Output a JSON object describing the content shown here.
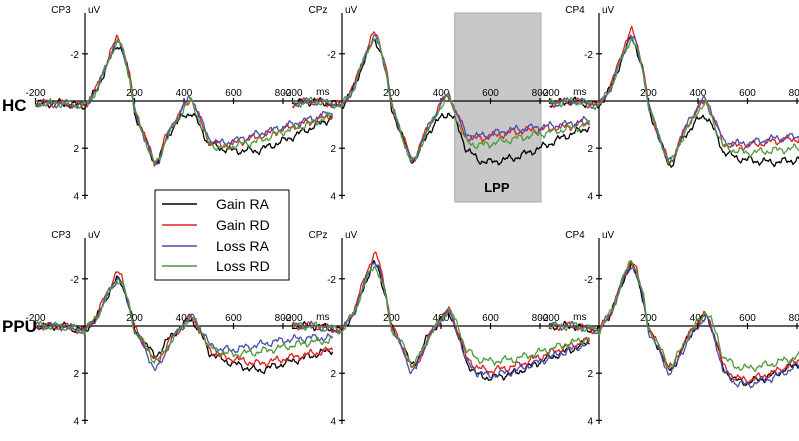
{
  "groups": [
    "HC",
    "PPU"
  ],
  "legend": {
    "entries": [
      {
        "label": "Gain RA",
        "color": "#000000"
      },
      {
        "label": "Gain RD",
        "color": "#e0211d"
      },
      {
        "label": "Loss RA",
        "color": "#4a4fae"
      },
      {
        "label": "Loss RD",
        "color": "#4f9a3f"
      }
    ]
  },
  "lpp": {
    "label": "LPP",
    "x_from": 500,
    "x_to": 800,
    "color": "#c8c8c8"
  },
  "chart_data": [
    {
      "type": "line",
      "group": "HC",
      "channel": "CP3",
      "y_unit": "uV",
      "x_unit": "ms",
      "xlim": [
        -200,
        1000
      ],
      "ylim": [
        -4,
        4
      ],
      "y_inverted": true,
      "x_ticks": [
        -200,
        200,
        400,
        600,
        800
      ],
      "y_ticks": [
        -2,
        2,
        4
      ],
      "x": [
        -200,
        -100,
        0,
        50,
        100,
        130,
        150,
        180,
        200,
        250,
        280,
        300,
        320,
        350,
        400,
        430,
        450,
        480,
        500,
        550,
        600,
        700,
        800,
        900,
        1000
      ],
      "series": [
        {
          "name": "Gain RA",
          "values": [
            0.1,
            0.1,
            0.2,
            -0.5,
            -1.8,
            -2.4,
            -2.2,
            -1.0,
            0.5,
            1.8,
            2.6,
            2.5,
            1.8,
            1.2,
            0.6,
            0.5,
            0.8,
            1.4,
            1.8,
            2.0,
            2.1,
            2.1,
            1.7,
            1.2,
            0.7
          ]
        },
        {
          "name": "Gain RD",
          "values": [
            0.1,
            0.1,
            0.2,
            -0.6,
            -2.0,
            -2.7,
            -2.4,
            -1.1,
            0.4,
            1.7,
            2.6,
            2.4,
            1.7,
            1.1,
            0.2,
            -0.1,
            0.4,
            1.2,
            1.7,
            1.9,
            1.8,
            1.5,
            1.2,
            0.9,
            0.6
          ]
        },
        {
          "name": "Loss RA",
          "values": [
            0.1,
            0.1,
            0.2,
            -0.5,
            -1.9,
            -2.5,
            -2.3,
            -1.0,
            0.4,
            1.8,
            2.7,
            2.5,
            1.8,
            1.1,
            0.2,
            -0.2,
            0.3,
            1.1,
            1.6,
            1.8,
            1.7,
            1.4,
            1.1,
            0.8,
            0.5
          ]
        },
        {
          "name": "Loss RD",
          "values": [
            0.1,
            0.1,
            0.2,
            -0.5,
            -1.9,
            -2.5,
            -2.3,
            -1.0,
            0.4,
            1.8,
            2.7,
            2.5,
            1.8,
            1.2,
            0.3,
            0.0,
            0.5,
            1.3,
            1.8,
            2.0,
            1.9,
            1.7,
            1.3,
            1.0,
            0.6
          ]
        }
      ]
    },
    {
      "type": "line",
      "group": "HC",
      "channel": "CPz",
      "y_unit": "uV",
      "x_unit": "ms",
      "xlim": [
        -200,
        1000
      ],
      "ylim": [
        -4,
        4
      ],
      "y_inverted": true,
      "x_ticks": [
        -200,
        200,
        400,
        600,
        800
      ],
      "y_ticks": [
        -2,
        2,
        4
      ],
      "x": [
        -200,
        -100,
        0,
        50,
        100,
        130,
        150,
        180,
        200,
        250,
        280,
        300,
        320,
        350,
        400,
        430,
        450,
        480,
        500,
        550,
        600,
        700,
        800,
        900,
        1000
      ],
      "series": [
        {
          "name": "Gain RA",
          "values": [
            0.1,
            0.0,
            0.2,
            -0.6,
            -2.0,
            -2.6,
            -2.3,
            -1.2,
            0.3,
            1.7,
            2.5,
            2.4,
            1.9,
            1.3,
            0.7,
            0.5,
            0.7,
            1.4,
            2.0,
            2.5,
            2.6,
            2.4,
            2.0,
            1.5,
            1.1
          ]
        },
        {
          "name": "Gain RD",
          "values": [
            0.1,
            0.0,
            0.2,
            -0.7,
            -2.2,
            -2.9,
            -2.6,
            -1.3,
            0.2,
            1.6,
            2.5,
            2.3,
            1.7,
            1.1,
            0.1,
            -0.3,
            0.2,
            1.0,
            1.5,
            1.6,
            1.5,
            1.3,
            1.2,
            1.1,
            0.9
          ]
        },
        {
          "name": "Loss RA",
          "values": [
            0.1,
            0.0,
            0.2,
            -0.6,
            -2.1,
            -2.7,
            -2.4,
            -1.2,
            0.2,
            1.7,
            2.6,
            2.4,
            1.8,
            1.1,
            0.1,
            -0.3,
            0.2,
            0.9,
            1.4,
            1.5,
            1.4,
            1.2,
            1.1,
            1.0,
            0.8
          ]
        },
        {
          "name": "Loss RD",
          "values": [
            0.1,
            0.0,
            0.2,
            -0.6,
            -2.1,
            -2.7,
            -2.4,
            -1.2,
            0.2,
            1.7,
            2.6,
            2.4,
            1.8,
            1.2,
            0.2,
            -0.2,
            0.3,
            1.2,
            1.7,
            1.9,
            1.8,
            1.6,
            1.4,
            1.2,
            1.0
          ]
        }
      ]
    },
    {
      "type": "line",
      "group": "HC",
      "channel": "CP4",
      "y_unit": "uV",
      "x_unit": "ms",
      "xlim": [
        -200,
        1000
      ],
      "ylim": [
        -4,
        4
      ],
      "y_inverted": true,
      "x_ticks": [
        -200,
        200,
        400,
        600,
        800
      ],
      "y_ticks": [
        -2,
        2,
        4
      ],
      "x": [
        -200,
        -100,
        0,
        50,
        100,
        130,
        150,
        180,
        200,
        250,
        280,
        300,
        320,
        350,
        400,
        430,
        450,
        480,
        500,
        550,
        600,
        700,
        800,
        900,
        1000
      ],
      "series": [
        {
          "name": "Gain RA",
          "values": [
            0.1,
            0.0,
            0.2,
            -0.6,
            -2.0,
            -2.7,
            -2.3,
            -1.2,
            0.3,
            1.8,
            2.7,
            2.6,
            2.0,
            1.4,
            0.8,
            0.6,
            0.9,
            1.6,
            2.1,
            2.4,
            2.5,
            2.6,
            2.5,
            2.3,
            2.0
          ]
        },
        {
          "name": "Gain RD",
          "values": [
            0.1,
            0.0,
            0.2,
            -0.7,
            -2.3,
            -3.0,
            -2.6,
            -1.3,
            0.2,
            1.7,
            2.6,
            2.5,
            1.8,
            1.2,
            0.3,
            0.0,
            0.4,
            1.2,
            1.8,
            1.9,
            1.9,
            1.7,
            1.6,
            1.5,
            1.5
          ]
        },
        {
          "name": "Loss RA",
          "values": [
            0.1,
            0.0,
            0.2,
            -0.6,
            -2.1,
            -2.8,
            -2.4,
            -1.2,
            0.2,
            1.7,
            2.6,
            2.5,
            1.8,
            1.1,
            0.2,
            -0.1,
            0.3,
            1.1,
            1.7,
            1.8,
            1.8,
            1.6,
            1.5,
            1.4,
            1.3
          ]
        },
        {
          "name": "Loss RD",
          "values": [
            0.1,
            0.0,
            0.2,
            -0.6,
            -2.0,
            -2.7,
            -2.3,
            -1.2,
            0.2,
            1.7,
            2.6,
            2.5,
            1.9,
            1.3,
            0.4,
            0.1,
            0.5,
            1.4,
            1.9,
            2.1,
            2.2,
            2.1,
            2.0,
            1.9,
            1.8
          ]
        }
      ]
    },
    {
      "type": "line",
      "group": "PPU",
      "channel": "CP3",
      "y_unit": "uV",
      "x_unit": "ms",
      "xlim": [
        -200,
        1000
      ],
      "ylim": [
        -4,
        4
      ],
      "y_inverted": true,
      "x_ticks": [
        -200,
        200,
        400,
        600,
        800
      ],
      "y_ticks": [
        -2,
        2,
        4
      ],
      "x": [
        -200,
        -100,
        0,
        50,
        100,
        130,
        150,
        180,
        200,
        250,
        280,
        300,
        320,
        350,
        400,
        430,
        450,
        480,
        500,
        550,
        600,
        700,
        800,
        900,
        1000
      ],
      "series": [
        {
          "name": "Gain RA",
          "values": [
            0.0,
            0.0,
            0.2,
            -0.4,
            -1.5,
            -2.0,
            -1.8,
            -0.8,
            0.2,
            0.8,
            1.3,
            1.1,
            0.8,
            0.4,
            -0.1,
            -0.3,
            0.0,
            0.6,
            1.1,
            1.4,
            1.6,
            1.9,
            1.6,
            1.3,
            1.0
          ]
        },
        {
          "name": "Gain RD",
          "values": [
            0.0,
            0.0,
            0.2,
            -0.5,
            -1.7,
            -2.3,
            -2.0,
            -0.9,
            0.1,
            0.9,
            1.5,
            1.4,
            1.0,
            0.5,
            -0.1,
            -0.4,
            -0.1,
            0.5,
            1.0,
            1.3,
            1.4,
            1.6,
            1.4,
            1.2,
            1.0
          ]
        },
        {
          "name": "Loss RA",
          "values": [
            0.0,
            0.0,
            0.2,
            -0.4,
            -1.5,
            -2.0,
            -1.8,
            -0.8,
            0.2,
            1.1,
            1.9,
            1.7,
            1.2,
            0.6,
            -0.1,
            -0.4,
            -0.2,
            0.3,
            0.8,
            1.0,
            1.0,
            0.8,
            0.6,
            0.5,
            0.5
          ]
        },
        {
          "name": "Loss RD",
          "values": [
            0.0,
            0.0,
            0.2,
            -0.4,
            -1.5,
            -2.0,
            -1.8,
            -0.8,
            0.2,
            0.9,
            1.5,
            1.4,
            1.1,
            0.6,
            -0.1,
            -0.4,
            -0.1,
            0.4,
            0.9,
            1.1,
            1.2,
            1.1,
            0.9,
            0.7,
            0.6
          ]
        }
      ]
    },
    {
      "type": "line",
      "group": "PPU",
      "channel": "CPz",
      "y_unit": "uV",
      "x_unit": "ms",
      "xlim": [
        -200,
        1000
      ],
      "ylim": [
        -4,
        4
      ],
      "y_inverted": true,
      "x_ticks": [
        -200,
        200,
        400,
        600,
        800
      ],
      "y_ticks": [
        -2,
        2,
        4
      ],
      "x": [
        -200,
        -100,
        0,
        50,
        100,
        130,
        150,
        180,
        200,
        250,
        280,
        300,
        320,
        350,
        400,
        430,
        450,
        480,
        500,
        550,
        600,
        700,
        800,
        900,
        1000
      ],
      "series": [
        {
          "name": "Gain RA",
          "values": [
            0.0,
            0.0,
            0.2,
            -0.6,
            -2.0,
            -2.7,
            -2.3,
            -1.1,
            0.1,
            0.9,
            1.7,
            1.5,
            1.0,
            0.4,
            -0.3,
            -0.6,
            -0.2,
            0.7,
            1.5,
            2.1,
            2.2,
            2.0,
            1.5,
            1.1,
            0.7
          ]
        },
        {
          "name": "Gain RD",
          "values": [
            0.0,
            0.0,
            0.2,
            -0.7,
            -2.3,
            -3.1,
            -2.7,
            -1.3,
            0.0,
            1.0,
            1.8,
            1.7,
            1.2,
            0.5,
            -0.3,
            -0.7,
            -0.3,
            0.6,
            1.3,
            1.8,
            1.9,
            1.7,
            1.3,
            0.9,
            0.6
          ]
        },
        {
          "name": "Loss RA",
          "values": [
            0.0,
            0.0,
            0.2,
            -0.6,
            -2.1,
            -2.8,
            -2.4,
            -1.2,
            0.1,
            1.1,
            2.0,
            1.8,
            1.2,
            0.5,
            -0.3,
            -0.6,
            -0.2,
            0.7,
            1.5,
            2.0,
            2.1,
            1.9,
            1.5,
            1.1,
            0.7
          ]
        },
        {
          "name": "Loss RD",
          "values": [
            0.0,
            0.0,
            0.2,
            -0.6,
            -2.0,
            -2.6,
            -2.2,
            -1.1,
            0.1,
            0.9,
            1.6,
            1.5,
            1.1,
            0.5,
            -0.3,
            -0.7,
            -0.4,
            0.3,
            1.0,
            1.4,
            1.5,
            1.4,
            1.1,
            0.8,
            0.5
          ]
        }
      ]
    },
    {
      "type": "line",
      "group": "PPU",
      "channel": "CP4",
      "y_unit": "uV",
      "x_unit": "ms",
      "xlim": [
        -200,
        1000
      ],
      "ylim": [
        -4,
        4
      ],
      "y_inverted": true,
      "x_ticks": [
        -200,
        200,
        400,
        600,
        800
      ],
      "y_ticks": [
        -2,
        2,
        4
      ],
      "x": [
        -200,
        -100,
        0,
        50,
        100,
        130,
        150,
        180,
        200,
        250,
        280,
        300,
        320,
        350,
        400,
        430,
        450,
        480,
        500,
        550,
        600,
        700,
        800,
        900,
        1000
      ],
      "series": [
        {
          "name": "Gain RA",
          "values": [
            0.0,
            0.0,
            0.2,
            -0.6,
            -2.0,
            -2.6,
            -2.2,
            -1.1,
            0.2,
            1.1,
            1.9,
            1.8,
            1.3,
            0.7,
            -0.1,
            -0.5,
            -0.1,
            0.9,
            1.8,
            2.3,
            2.4,
            2.1,
            1.6,
            1.2,
            0.9
          ]
        },
        {
          "name": "Gain RD",
          "values": [
            0.0,
            0.0,
            0.2,
            -0.6,
            -2.1,
            -2.8,
            -2.4,
            -1.2,
            0.1,
            1.0,
            1.8,
            1.7,
            1.2,
            0.6,
            -0.2,
            -0.5,
            -0.1,
            0.8,
            1.7,
            2.2,
            2.3,
            2.0,
            1.5,
            1.1,
            0.8
          ]
        },
        {
          "name": "Loss RA",
          "values": [
            0.0,
            0.0,
            0.2,
            -0.6,
            -2.0,
            -2.6,
            -2.2,
            -1.1,
            0.2,
            1.2,
            2.0,
            1.9,
            1.4,
            0.8,
            0.0,
            -0.4,
            0.0,
            1.0,
            1.9,
            2.4,
            2.5,
            2.2,
            1.7,
            1.3,
            0.9
          ]
        },
        {
          "name": "Loss RD",
          "values": [
            0.0,
            0.0,
            0.2,
            -0.6,
            -2.1,
            -2.8,
            -2.4,
            -1.2,
            0.1,
            1.0,
            1.7,
            1.6,
            1.2,
            0.6,
            -0.2,
            -0.6,
            -0.3,
            0.5,
            1.3,
            1.7,
            1.8,
            1.6,
            1.3,
            1.0,
            0.8
          ]
        }
      ]
    }
  ]
}
